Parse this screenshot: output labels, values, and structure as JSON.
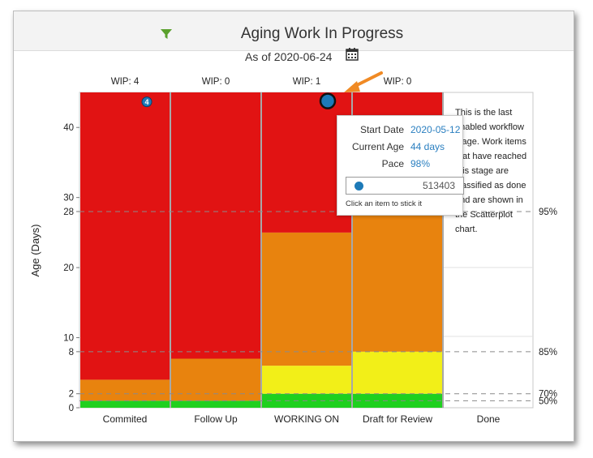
{
  "header": {
    "title": "Aging Work In Progress",
    "filter_icon": "filter-icon"
  },
  "as_of": {
    "label": "As of 2020-06-24",
    "calendar_icon": "calendar-icon"
  },
  "chart_data": {
    "type": "bar",
    "categories": [
      "Commited",
      "Follow Up",
      "WORKING ON",
      "Draft for Review",
      "Done"
    ],
    "wip_labels": [
      "WIP: 4",
      "WIP: 0",
      "WIP: 1",
      "WIP: 0",
      ""
    ],
    "ylabel": "Age (Days)",
    "ylim": [
      0,
      45
    ],
    "yticks": [
      0,
      2,
      8,
      10,
      20,
      28,
      30,
      40
    ],
    "ytick_labels": [
      "0",
      "2",
      "8",
      "10",
      "20",
      "28",
      "30",
      "40"
    ],
    "band_colors": {
      "green": "#1fd01f",
      "yellow": "#f2ef18",
      "orange": "#e8830e",
      "red": "#e11313"
    },
    "columns": [
      {
        "green": 1,
        "yellow": 1,
        "orange": 4,
        "red": 45
      },
      {
        "green": 1,
        "yellow": 1,
        "orange": 7,
        "red": 45
      },
      {
        "green": 2,
        "yellow": 6,
        "orange": 25,
        "red": 45
      },
      {
        "green": 2,
        "yellow": 8,
        "orange": 28,
        "red": 45
      }
    ],
    "percentile_lines": [
      {
        "label": "95%",
        "value": 28
      },
      {
        "label": "85%",
        "value": 8
      },
      {
        "label": "70%",
        "value": 2
      },
      {
        "label": "50%",
        "value": 1
      }
    ],
    "points": [
      {
        "column": 0,
        "age": 44,
        "label": "4",
        "size": "small"
      },
      {
        "column": 2,
        "age": 44,
        "label": "",
        "size": "large"
      }
    ]
  },
  "done_note": "This is the last enabled workflow stage. Work items that have reached this stage are classified as done and are shown in the Scatterplot chart.",
  "tooltip": {
    "start_label": "Start Date",
    "start_value": "2020-05-12",
    "age_label": "Current Age",
    "age_value": "44 days",
    "pace_label": "Pace",
    "pace_value": "98%",
    "item_id": "513403",
    "hint": "Click an item to stick it"
  },
  "colors": {
    "accent_blue": "#1d7ab8",
    "arrow": "#f08a24",
    "filter": "#5aa02c"
  }
}
